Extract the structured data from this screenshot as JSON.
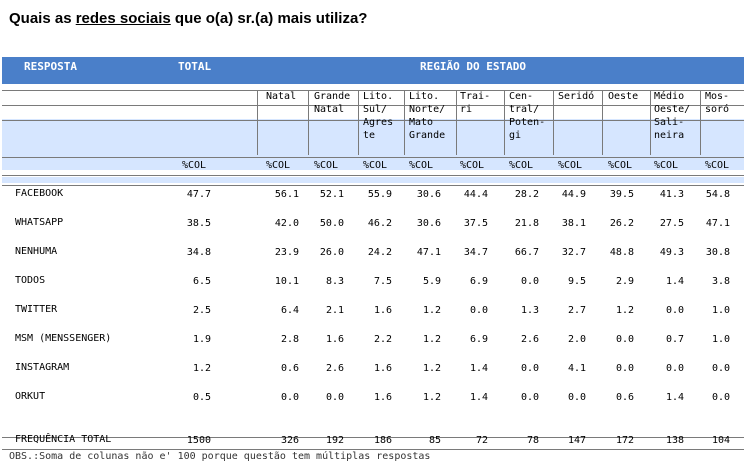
{
  "title": {
    "prefix": "Quais as ",
    "underlined": "redes sociais",
    "suffix": " que o(a) sr.(a) mais utiliza?"
  },
  "header": {
    "resposta": "RESPOSTA",
    "total": "TOTAL",
    "regiao": "REGIÃO DO ESTADO"
  },
  "columns": [
    {
      "lines": [
        "Natal"
      ]
    },
    {
      "lines": [
        "Grande",
        "Natal"
      ]
    },
    {
      "lines": [
        "Lito.",
        "Sul/",
        "Agres",
        "te"
      ]
    },
    {
      "lines": [
        "Lito.",
        "Norte/",
        "Mato",
        "Grande"
      ]
    },
    {
      "lines": [
        "Trai-",
        "ri"
      ]
    },
    {
      "lines": [
        "Cen-",
        "tral/",
        "Poten-",
        "gi"
      ]
    },
    {
      "lines": [
        "Seridó"
      ]
    },
    {
      "lines": [
        "Oeste"
      ]
    },
    {
      "lines": [
        "Médio",
        "Oeste/",
        "Sali-",
        "neira"
      ]
    },
    {
      "lines": [
        "Mos-",
        "soró"
      ]
    }
  ],
  "unit": "%COL",
  "rows": [
    {
      "label": "FACEBOOK",
      "total": "47.7",
      "values": [
        "56.1",
        "52.1",
        "55.9",
        "30.6",
        "44.4",
        "28.2",
        "44.9",
        "39.5",
        "41.3",
        "54.8"
      ]
    },
    {
      "label": "WHATSAPP",
      "total": "38.5",
      "values": [
        "42.0",
        "50.0",
        "46.2",
        "30.6",
        "37.5",
        "21.8",
        "38.1",
        "26.2",
        "27.5",
        "47.1"
      ]
    },
    {
      "label": "NENHUMA",
      "total": "34.8",
      "values": [
        "23.9",
        "26.0",
        "24.2",
        "47.1",
        "34.7",
        "66.7",
        "32.7",
        "48.8",
        "49.3",
        "30.8"
      ]
    },
    {
      "label": "TODOS",
      "total": "6.5",
      "values": [
        "10.1",
        "8.3",
        "7.5",
        "5.9",
        "6.9",
        "0.0",
        "9.5",
        "2.9",
        "1.4",
        "3.8"
      ]
    },
    {
      "label": "TWITTER",
      "total": "2.5",
      "values": [
        "6.4",
        "2.1",
        "1.6",
        "1.2",
        "0.0",
        "1.3",
        "2.7",
        "1.2",
        "0.0",
        "1.0"
      ]
    },
    {
      "label": "MSM (MENSSENGER)",
      "total": "1.9",
      "values": [
        "2.8",
        "1.6",
        "2.2",
        "1.2",
        "6.9",
        "2.6",
        "2.0",
        "0.0",
        "0.7",
        "1.0"
      ]
    },
    {
      "label": "INSTAGRAM",
      "total": "1.2",
      "values": [
        "0.6",
        "2.6",
        "1.6",
        "1.2",
        "1.4",
        "0.0",
        "4.1",
        "0.0",
        "0.0",
        "0.0"
      ]
    },
    {
      "label": "ORKUT",
      "total": "0.5",
      "values": [
        "0.0",
        "0.0",
        "1.6",
        "1.2",
        "1.4",
        "0.0",
        "0.0",
        "0.6",
        "1.4",
        "0.0"
      ]
    }
  ],
  "frequency": {
    "label": "FREQUÊNCIA TOTAL",
    "total": "1500",
    "values": [
      "326",
      "192",
      "186",
      "85",
      "72",
      "78",
      "147",
      "172",
      "138",
      "104"
    ]
  },
  "note": "OBS.:Soma de colunas não e' 100 porque questão tem múltiplas respostas"
}
